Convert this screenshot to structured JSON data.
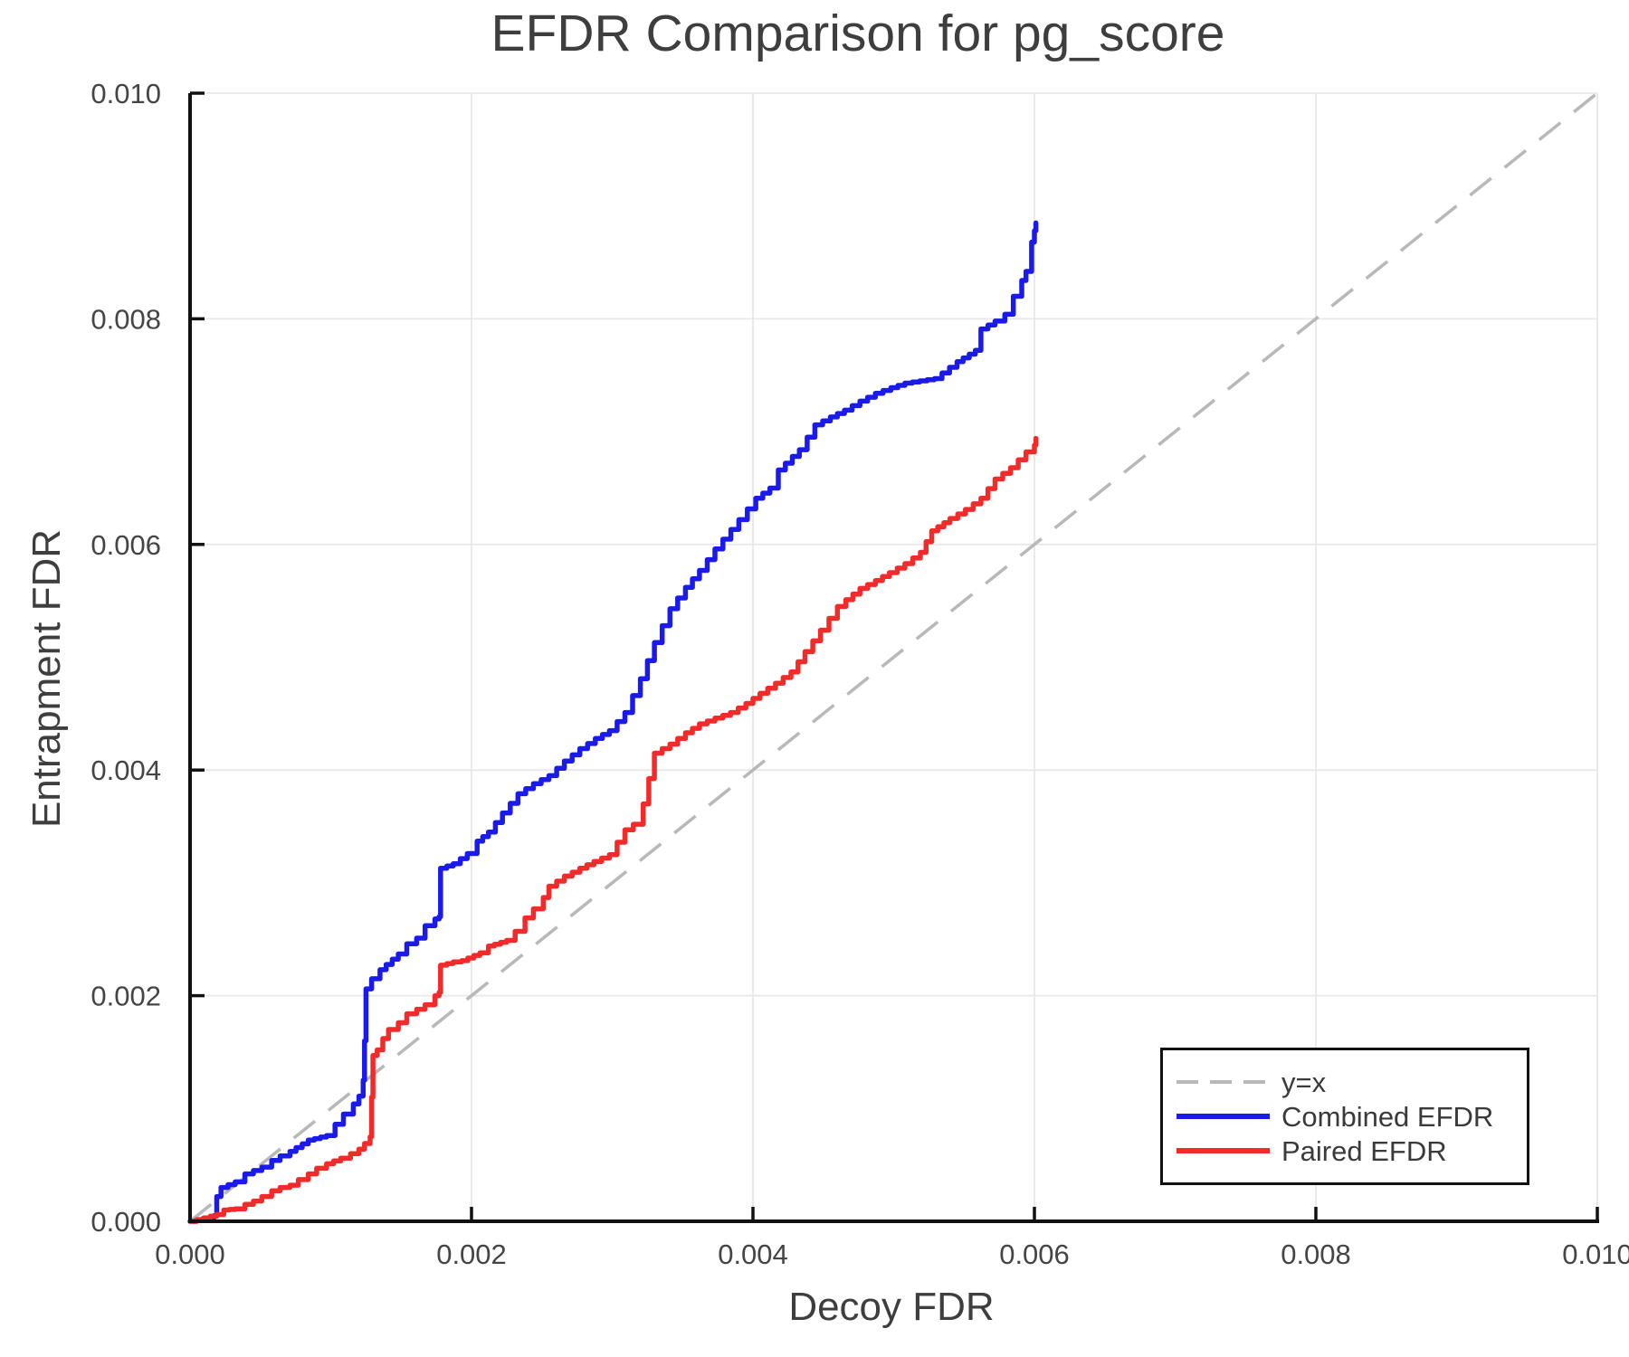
{
  "title": "EFDR Comparison for pg_score",
  "axes": {
    "xlabel": "Decoy FDR",
    "ylabel": "Entrapment FDR",
    "xtick_labels": [
      "0.000",
      "0.002",
      "0.004",
      "0.006",
      "0.008",
      "0.010"
    ],
    "ytick_labels": [
      "0.000",
      "0.002",
      "0.004",
      "0.006",
      "0.008",
      "0.010"
    ]
  },
  "legend": {
    "items": [
      {
        "label": "y=x",
        "style": "dashed",
        "color": "#b8b8b8"
      },
      {
        "label": "Combined EFDR",
        "style": "solid",
        "color": "#1a1aec"
      },
      {
        "label": "Paired EFDR",
        "style": "solid",
        "color": "#f32a2a"
      }
    ]
  },
  "colors": {
    "background": "#ffffff",
    "grid": "#e8e8e8",
    "spine": "#111111",
    "tick_text": "#454545",
    "title_text": "#3e3e3e",
    "identity_line": "#b8b8b8",
    "combined": "#1a1aec",
    "paired": "#f32a2a"
  },
  "chart_data": {
    "type": "line",
    "title": "EFDR Comparison for pg_score",
    "xlabel": "Decoy FDR",
    "ylabel": "Entrapment FDR",
    "xlim": [
      0,
      0.01
    ],
    "ylim": [
      0,
      0.01
    ],
    "xticks": [
      0,
      0.002,
      0.004,
      0.006,
      0.008,
      0.01
    ],
    "yticks": [
      0,
      0.002,
      0.004,
      0.006,
      0.008,
      0.01
    ],
    "grid": true,
    "legend_position": "lower right",
    "series": [
      {
        "name": "y=x",
        "style": "dashed",
        "step": false,
        "color_key": "identity_line",
        "points": [
          [
            0,
            0
          ],
          [
            0.01,
            0.01
          ]
        ]
      },
      {
        "name": "Combined EFDR",
        "style": "solid",
        "step": true,
        "color_key": "combined",
        "points": [
          [
            0,
            0
          ],
          [
            0.00013,
            3e-05
          ],
          [
            0.00017,
            5e-05
          ],
          [
            0.00019,
            0.00022
          ],
          [
            0.00022,
            0.0003
          ],
          [
            0.00032,
            0.00035
          ],
          [
            0.00039,
            0.00042
          ],
          [
            0.00051,
            0.00048
          ],
          [
            0.00058,
            0.00054
          ],
          [
            0.00064,
            0.00058
          ],
          [
            0.00071,
            0.00062
          ],
          [
            0.00084,
            0.00072
          ],
          [
            0.00097,
            0.00076
          ],
          [
            0.00103,
            0.00086
          ],
          [
            0.00109,
            0.00095
          ],
          [
            0.00116,
            0.00104
          ],
          [
            0.0012,
            0.00111
          ],
          [
            0.00123,
            0.00125
          ],
          [
            0.00124,
            0.0016
          ],
          [
            0.00125,
            0.00206
          ],
          [
            0.00129,
            0.00215
          ],
          [
            0.00135,
            0.00223
          ],
          [
            0.00148,
            0.00237
          ],
          [
            0.00154,
            0.00246
          ],
          [
            0.00161,
            0.00251
          ],
          [
            0.00167,
            0.00262
          ],
          [
            0.00174,
            0.00268
          ],
          [
            0.00177,
            0.0027
          ],
          [
            0.00178,
            0.00313
          ],
          [
            0.00187,
            0.00317
          ],
          [
            0.00197,
            0.00326
          ],
          [
            0.00204,
            0.00337
          ],
          [
            0.00212,
            0.00345
          ],
          [
            0.00222,
            0.00362
          ],
          [
            0.00233,
            0.00379
          ],
          [
            0.00244,
            0.00388
          ],
          [
            0.00255,
            0.00395
          ],
          [
            0.00266,
            0.00408
          ],
          [
            0.00277,
            0.00419
          ],
          [
            0.00288,
            0.00428
          ],
          [
            0.00298,
            0.00435
          ],
          [
            0.00309,
            0.00451
          ],
          [
            0.0032,
            0.00481
          ],
          [
            0.0033,
            0.00513
          ],
          [
            0.00341,
            0.00543
          ],
          [
            0.00352,
            0.00562
          ],
          [
            0.00362,
            0.00577
          ],
          [
            0.00373,
            0.00596
          ],
          [
            0.0039,
            0.00622
          ],
          [
            0.00402,
            0.00641
          ],
          [
            0.00412,
            0.0065
          ],
          [
            0.00418,
            0.00666
          ],
          [
            0.00433,
            0.00684
          ],
          [
            0.00444,
            0.00706
          ],
          [
            0.00455,
            0.00713
          ],
          [
            0.00465,
            0.00719
          ],
          [
            0.00476,
            0.00727
          ],
          [
            0.00487,
            0.00734
          ],
          [
            0.00498,
            0.00739
          ],
          [
            0.00508,
            0.00743
          ],
          [
            0.00529,
            0.00747
          ],
          [
            0.00545,
            0.00762
          ],
          [
            0.00558,
            0.00772
          ],
          [
            0.00562,
            0.00791
          ],
          [
            0.00572,
            0.00798
          ],
          [
            0.00579,
            0.00804
          ],
          [
            0.00585,
            0.0082
          ],
          [
            0.00591,
            0.00834
          ],
          [
            0.00594,
            0.00842
          ],
          [
            0.00598,
            0.00868
          ],
          [
            0.006,
            0.00878
          ],
          [
            0.00601,
            0.00885
          ]
        ]
      },
      {
        "name": "Paired EFDR",
        "style": "solid",
        "step": true,
        "color_key": "paired",
        "points": [
          [
            0,
            0
          ],
          [
            0.00019,
            6e-05
          ],
          [
            0.00024,
            0.0001
          ],
          [
            0.00032,
            0.00011
          ],
          [
            0.00039,
            0.00015
          ],
          [
            0.00045,
            0.00018
          ],
          [
            0.00051,
            0.00022
          ],
          [
            0.00058,
            0.00027
          ],
          [
            0.00064,
            0.0003
          ],
          [
            0.00071,
            0.00032
          ],
          [
            0.00077,
            0.00037
          ],
          [
            0.00084,
            0.00042
          ],
          [
            0.0009,
            0.00047
          ],
          [
            0.00097,
            0.00051
          ],
          [
            0.00107,
            0.00056
          ],
          [
            0.00114,
            0.0006
          ],
          [
            0.0012,
            0.00064
          ],
          [
            0.00124,
            0.00069
          ],
          [
            0.00128,
            0.00075
          ],
          [
            0.00129,
            0.0011
          ],
          [
            0.0013,
            0.00147
          ],
          [
            0.00133,
            0.00152
          ],
          [
            0.00137,
            0.00162
          ],
          [
            0.00141,
            0.0017
          ],
          [
            0.00148,
            0.00176
          ],
          [
            0.00154,
            0.00184
          ],
          [
            0.00161,
            0.00188
          ],
          [
            0.00167,
            0.00192
          ],
          [
            0.00174,
            0.002
          ],
          [
            0.00177,
            0.00203
          ],
          [
            0.00178,
            0.00227
          ],
          [
            0.00187,
            0.0023
          ],
          [
            0.00193,
            0.00231
          ],
          [
            0.00206,
            0.00238
          ],
          [
            0.00212,
            0.00244
          ],
          [
            0.00225,
            0.00249
          ],
          [
            0.00231,
            0.00257
          ],
          [
            0.00238,
            0.00269
          ],
          [
            0.00244,
            0.00277
          ],
          [
            0.00251,
            0.00287
          ],
          [
            0.00255,
            0.00297
          ],
          [
            0.00266,
            0.00306
          ],
          [
            0.00277,
            0.00313
          ],
          [
            0.00287,
            0.00319
          ],
          [
            0.00298,
            0.00325
          ],
          [
            0.00309,
            0.00347
          ],
          [
            0.00315,
            0.00352
          ],
          [
            0.00322,
            0.0037
          ],
          [
            0.0033,
            0.00415
          ],
          [
            0.00341,
            0.00423
          ],
          [
            0.00352,
            0.00433
          ],
          [
            0.00362,
            0.00441
          ],
          [
            0.00373,
            0.00446
          ],
          [
            0.00384,
            0.00451
          ],
          [
            0.00395,
            0.00459
          ],
          [
            0.00405,
            0.00468
          ],
          [
            0.00416,
            0.00477
          ],
          [
            0.00427,
            0.00487
          ],
          [
            0.00437,
            0.00505
          ],
          [
            0.00448,
            0.00524
          ],
          [
            0.0046,
            0.00545
          ],
          [
            0.00466,
            0.00551
          ],
          [
            0.00476,
            0.00561
          ],
          [
            0.00487,
            0.00568
          ],
          [
            0.00497,
            0.00575
          ],
          [
            0.00508,
            0.00583
          ],
          [
            0.00519,
            0.00593
          ],
          [
            0.00527,
            0.00612
          ],
          [
            0.0054,
            0.00623
          ],
          [
            0.00551,
            0.00631
          ],
          [
            0.00562,
            0.00641
          ],
          [
            0.00572,
            0.00658
          ],
          [
            0.00583,
            0.00668
          ],
          [
            0.00594,
            0.00682
          ],
          [
            0.006,
            0.00688
          ],
          [
            0.00601,
            0.00694
          ]
        ]
      }
    ]
  }
}
